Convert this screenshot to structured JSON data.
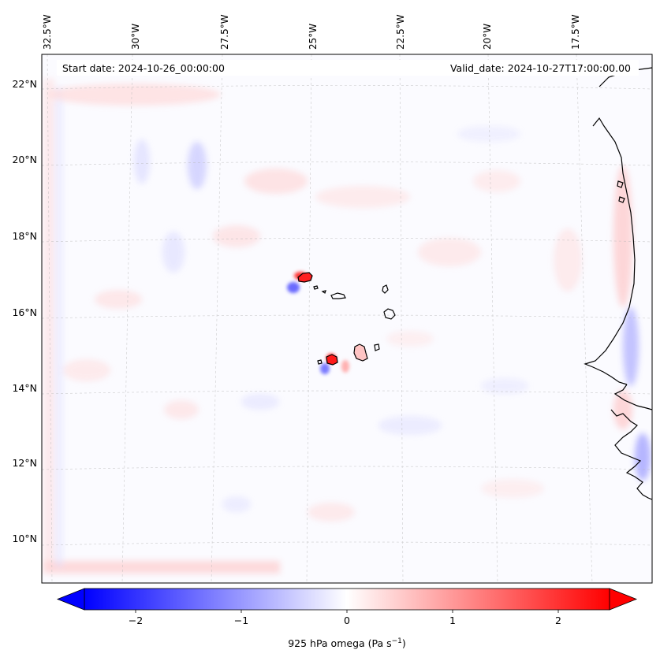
{
  "header": {
    "start_date": "Start date: 2024-10-26_00:00:00",
    "valid_date": "Valid_date: 2024-10-27T17:00:00.00"
  },
  "axes": {
    "lon_labels": [
      "32.5°W",
      "30°W",
      "27.5°W",
      "25°W",
      "22.5°W",
      "20°W",
      "17.5°W"
    ],
    "lat_labels": [
      "22°N",
      "20°N",
      "18°N",
      "16°N",
      "14°N",
      "12°N",
      "10°N"
    ]
  },
  "colorbar": {
    "ticks": [
      "−2",
      "−1",
      "0",
      "1",
      "2"
    ],
    "label_main": "925 hPa omega (Pa s",
    "label_exp": "−1",
    "label_close": ")",
    "range": [
      -2.6,
      2.6
    ],
    "colors": {
      "low": "#0000ff",
      "mid": "#ffffff",
      "high": "#ff0000"
    }
  },
  "map_features": {
    "coastline_color": "#000000",
    "gridline_color": "#b0b0b0",
    "labels": [
      "west-africa-coast",
      "cape-verde-islands"
    ]
  }
}
